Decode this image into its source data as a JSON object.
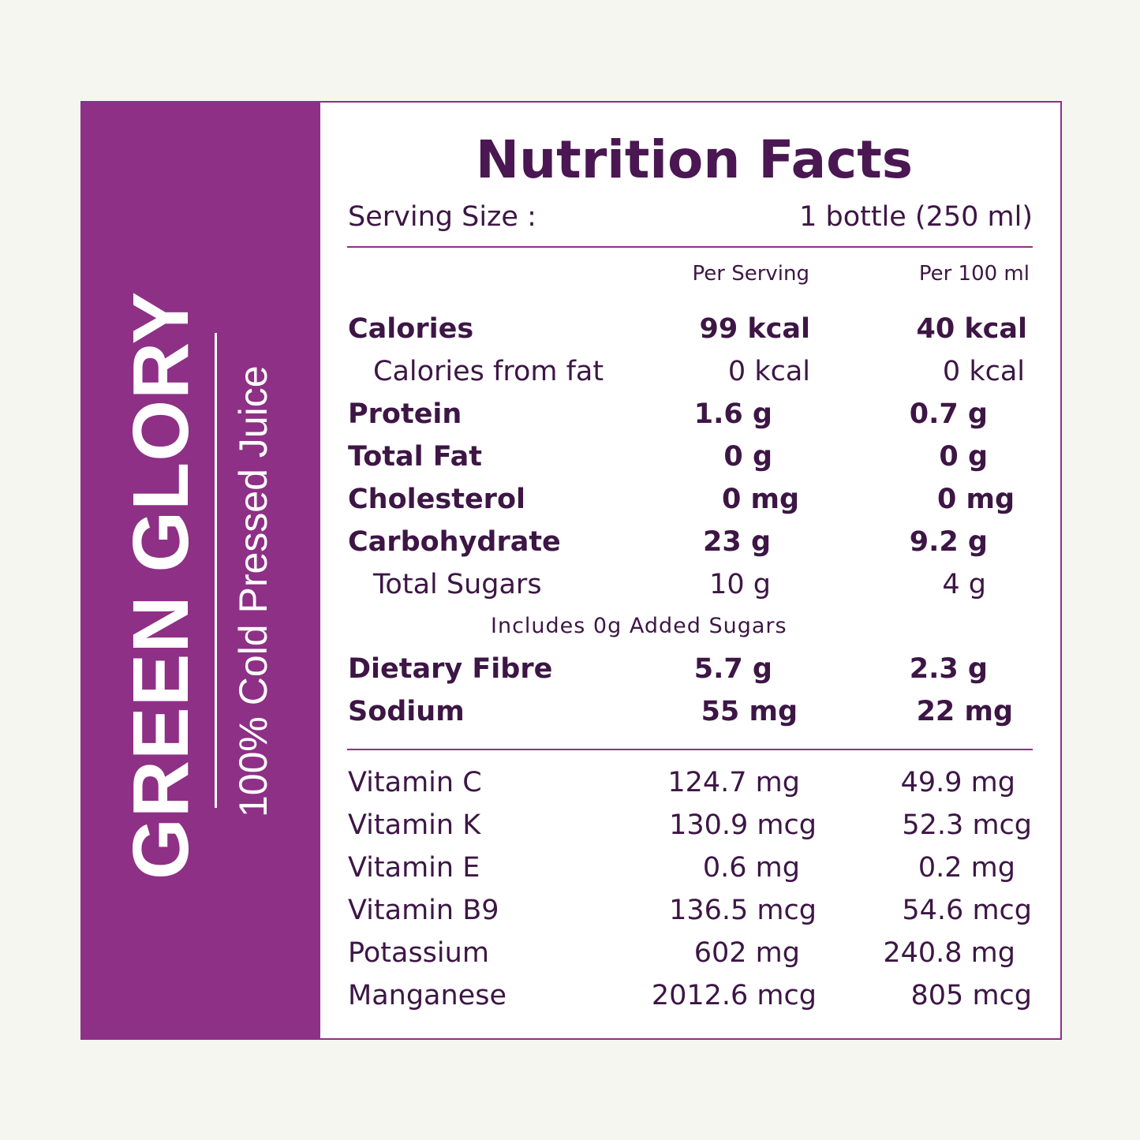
{
  "brand": {
    "name": "GREEN GLORY",
    "tagline": "100% Cold Pressed Juice"
  },
  "facts": {
    "title": "Nutrition Facts",
    "serving_label": "Serving Size :",
    "serving_value": "1 bottle (250 ml)",
    "col_per_serving": "Per Serving",
    "col_per_100ml": "Per 100 ml",
    "nutrients": [
      {
        "name": "Calories",
        "per_serving": "99 kcal",
        "per_100ml": "40 kcal"
      },
      {
        "name": "Calories from fat",
        "per_serving": "0 kcal",
        "per_100ml": "0 kcal"
      },
      {
        "name": "Protein",
        "per_serving": "1.6 g",
        "per_100ml": "0.7 g"
      },
      {
        "name": "Total Fat",
        "per_serving": "0 g",
        "per_100ml": "0 g"
      },
      {
        "name": "Cholesterol",
        "per_serving": "0 mg",
        "per_100ml": "0 mg"
      },
      {
        "name": "Carbohydrate",
        "per_serving": "23 g",
        "per_100ml": "9.2 g"
      },
      {
        "name": "Total Sugars",
        "per_serving": "10 g",
        "per_100ml": "4 g"
      },
      {
        "name": "Dietary Fibre",
        "per_serving": "5.7 g",
        "per_100ml": "2.3 g"
      },
      {
        "name": "Sodium",
        "per_serving": "55 mg",
        "per_100ml": "22 mg"
      }
    ],
    "added_sugars_note": "Includes 0g Added Sugars",
    "micronutrients": [
      {
        "name": "Vitamin C",
        "per_serving": "124.7 mg",
        "per_100ml": "49.9 mg"
      },
      {
        "name": "Vitamin K",
        "per_serving": "130.9 mcg",
        "per_100ml": "52.3 mcg"
      },
      {
        "name": "Vitamin E",
        "per_serving": "0.6 mg",
        "per_100ml": "0.2 mg"
      },
      {
        "name": "Vitamin B9",
        "per_serving": "136.5 mcg",
        "per_100ml": "54.6 mcg"
      },
      {
        "name": "Potassium",
        "per_serving": "602 mg",
        "per_100ml": "240.8 mg"
      },
      {
        "name": "Manganese",
        "per_serving": "2012.6 mcg",
        "per_100ml": "805 mcg"
      }
    ]
  },
  "colors": {
    "accent_purple": "#8e3086",
    "text_dark_purple": "#3d1645",
    "page_background": "#f6f6f1"
  }
}
